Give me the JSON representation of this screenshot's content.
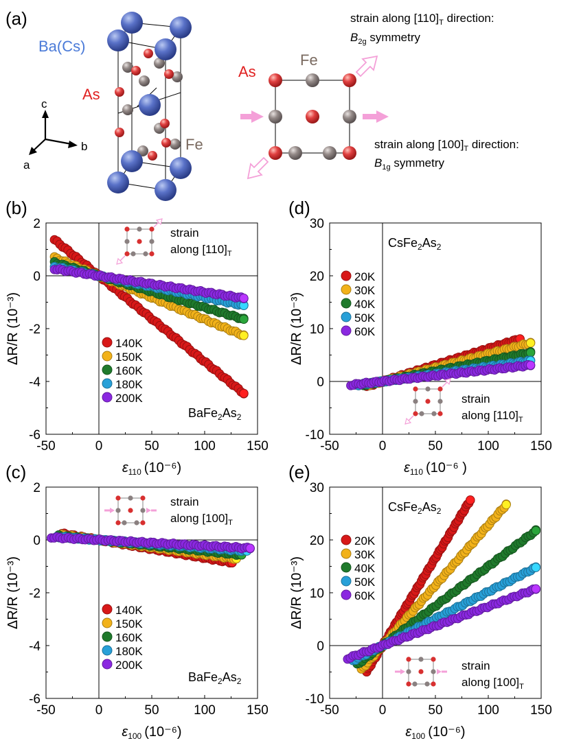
{
  "panel_a": {
    "label": "(a)",
    "atom_labels": {
      "ba_cs": "Ba(Cs)",
      "as_left": "As",
      "fe_left": "Fe",
      "as_right": "As",
      "fe_right": "Fe"
    },
    "axes": {
      "c": "c",
      "b": "b",
      "a": "a"
    },
    "strain_110": {
      "line1": "strain along [110]",
      "sub": "T",
      "line1b": " direction:",
      "sym": "B",
      "sym_sub": "2g",
      "sym_rest": " symmetry"
    },
    "strain_100": {
      "line1": "strain along [100]",
      "sub": "T",
      "line1b": " direction:",
      "sym": "B",
      "sym_sub": "1g",
      "sym_rest": " symmetry"
    },
    "colors": {
      "ba": "#4a62b8",
      "as": "#d83030",
      "fe": "#8a8080",
      "arrow": "#f4a0d8"
    }
  },
  "chart_data": [
    {
      "panel": "(b)",
      "type": "scatter",
      "compound": "BaFe",
      "compound_sub1": "2",
      "compound_mid": "As",
      "compound_sub2": "2",
      "xlabel_sym": "ε",
      "xlabel_sub": "110",
      "xlabel_unit": "(10⁻⁶)",
      "ylabel": "ΔR/R (10⁻³)",
      "xlim": [
        -50,
        150
      ],
      "ylim": [
        -6,
        2
      ],
      "xticks": [
        "-50",
        "0",
        "50",
        "100",
        "150"
      ],
      "yticks": [
        "-6",
        "-4",
        "-2",
        "0",
        "2"
      ],
      "inset_text1": "strain",
      "inset_text2": "along [110]",
      "inset_sub": "T",
      "inset_dir": "110",
      "series": [
        {
          "name": "140K",
          "color": "#d81818",
          "x_range": [
            -42,
            137
          ],
          "slope": -0.0325
        },
        {
          "name": "150K",
          "color": "#f2b21a",
          "x_range": [
            -42,
            137
          ],
          "slope": -0.0165
        },
        {
          "name": "160K",
          "color": "#1f7a2c",
          "x_range": [
            -42,
            137
          ],
          "slope": -0.012
        },
        {
          "name": "180K",
          "color": "#28a0d8",
          "x_range": [
            -42,
            137
          ],
          "slope": -0.0082
        },
        {
          "name": "200K",
          "color": "#8a28e0",
          "x_range": [
            -42,
            137
          ],
          "slope": -0.0062
        }
      ]
    },
    {
      "panel": "(c)",
      "type": "scatter",
      "compound": "BaFe",
      "compound_sub1": "2",
      "compound_mid": "As",
      "compound_sub2": "2",
      "xlabel_sym": "ε",
      "xlabel_sub": "100",
      "xlabel_unit": "(10⁻⁶)",
      "ylabel": "ΔR/R (10⁻³)",
      "xlim": [
        -50,
        150
      ],
      "ylim": [
        -6,
        2
      ],
      "xticks": [
        "-50",
        "0",
        "50",
        "100",
        "150"
      ],
      "yticks": [
        "-6",
        "-4",
        "-2",
        "0",
        "2"
      ],
      "inset_text1": "strain",
      "inset_text2": "along [100]",
      "inset_sub": "T",
      "inset_dir": "100",
      "series": [
        {
          "name": "140K",
          "color": "#d81818",
          "x_range": [
            -35,
            126
          ],
          "slope": -0.0068
        },
        {
          "name": "150K",
          "color": "#f2b21a",
          "x_range": [
            -35,
            130
          ],
          "slope": -0.0055
        },
        {
          "name": "160K",
          "color": "#1f7a2c",
          "x_range": [
            -38,
            135
          ],
          "slope": -0.0042
        },
        {
          "name": "180K",
          "color": "#28a0d8",
          "x_range": [
            -40,
            140
          ],
          "slope": -0.003
        },
        {
          "name": "200K",
          "color": "#8a28e0",
          "x_range": [
            -45,
            143
          ],
          "slope": -0.0022
        }
      ]
    },
    {
      "panel": "(d)",
      "type": "scatter",
      "compound": "CsFe",
      "compound_sub1": "2",
      "compound_mid": "As",
      "compound_sub2": "2",
      "xlabel_sym": "ε",
      "xlabel_sub": "110",
      "xlabel_unit": "(10⁻⁶ )",
      "ylabel": "ΔR/R (10⁻³)",
      "xlim": [
        -50,
        150
      ],
      "ylim": [
        -10,
        30
      ],
      "xticks": [
        "-50",
        "0",
        "50",
        "100",
        "150"
      ],
      "yticks": [
        "-10",
        "0",
        "10",
        "20",
        "30"
      ],
      "inset_text1": "strain",
      "inset_text2": "along [110]",
      "inset_sub": "T",
      "inset_dir": "110",
      "series": [
        {
          "name": "20K",
          "color": "#d81818",
          "x_range": [
            -15,
            130
          ],
          "slope": 0.062
        },
        {
          "name": "30K",
          "color": "#f2b21a",
          "x_range": [
            -17,
            140
          ],
          "slope": 0.052
        },
        {
          "name": "40K",
          "color": "#1f7a2c",
          "x_range": [
            -20,
            140
          ],
          "slope": 0.039
        },
        {
          "name": "50K",
          "color": "#28a0d8",
          "x_range": [
            -25,
            140
          ],
          "slope": 0.028
        },
        {
          "name": "60K",
          "color": "#8a28e0",
          "x_range": [
            -30,
            140
          ],
          "slope": 0.022
        }
      ]
    },
    {
      "panel": "(e)",
      "type": "scatter",
      "compound": "CsFe",
      "compound_sub1": "2",
      "compound_mid": "As",
      "compound_sub2": "2",
      "xlabel_sym": "ε",
      "xlabel_sub": "100",
      "xlabel_unit": "(10⁻⁶)",
      "ylabel": "ΔR/R (10⁻³)",
      "xlim": [
        -50,
        150
      ],
      "ylim": [
        -10,
        30
      ],
      "xticks": [
        "-50",
        "0",
        "50",
        "100",
        "150"
      ],
      "yticks": [
        "-10",
        "0",
        "10",
        "20",
        "30"
      ],
      "inset_text1": "strain",
      "inset_text2": "along [100]",
      "inset_sub": "T",
      "inset_dir": "100",
      "series": [
        {
          "name": "20K",
          "color": "#d81818",
          "x_range": [
            -15,
            83
          ],
          "slope": 0.332
        },
        {
          "name": "30K",
          "color": "#f2b21a",
          "x_range": [
            -20,
            117
          ],
          "slope": 0.228
        },
        {
          "name": "40K",
          "color": "#1f7a2c",
          "x_range": [
            -24,
            145
          ],
          "slope": 0.15
        },
        {
          "name": "50K",
          "color": "#28a0d8",
          "x_range": [
            -28,
            145
          ],
          "slope": 0.102
        },
        {
          "name": "60K",
          "color": "#8a28e0",
          "x_range": [
            -33,
            145
          ],
          "slope": 0.074
        }
      ]
    }
  ]
}
